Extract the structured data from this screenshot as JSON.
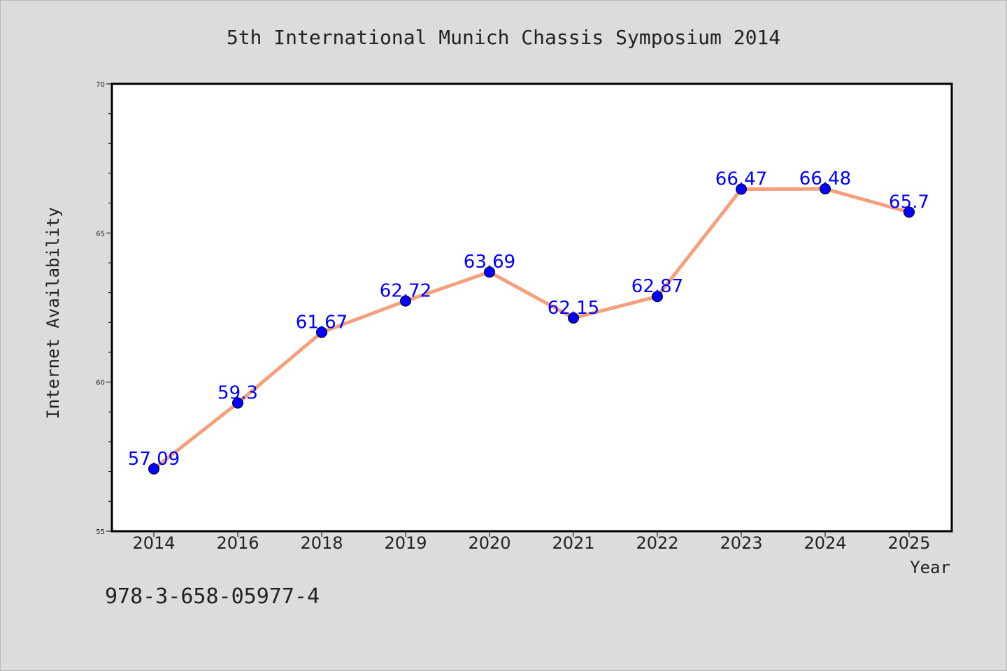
{
  "chart_data": {
    "type": "line",
    "title": "5th International Munich Chassis Symposium 2014",
    "xlabel": "Year",
    "ylabel": "Internet Availability",
    "categories": [
      "2014",
      "2016",
      "2018",
      "2019",
      "2020",
      "2021",
      "2022",
      "2023",
      "2024",
      "2025"
    ],
    "series": [
      {
        "values": [
          57.09,
          59.3,
          61.67,
          62.72,
          63.69,
          62.15,
          62.87,
          66.47,
          66.48,
          65.7
        ],
        "labels": [
          "57.09",
          "59.3",
          "61.67",
          "62.72",
          "63.69",
          "62.15",
          "62.87",
          "66.47",
          "66.48",
          "65.7"
        ],
        "line_color": "#f4a07c",
        "marker_color": "#0000ff"
      }
    ],
    "ylim": [
      55,
      70
    ],
    "yticks": [
      "55",
      "60",
      "65",
      "70"
    ],
    "grid": false
  },
  "footnote": "978-3-658-05977-4",
  "colors": {
    "background": "#dcdcdc",
    "plot_area": "#ffffff",
    "label_color": "#0000ff"
  }
}
